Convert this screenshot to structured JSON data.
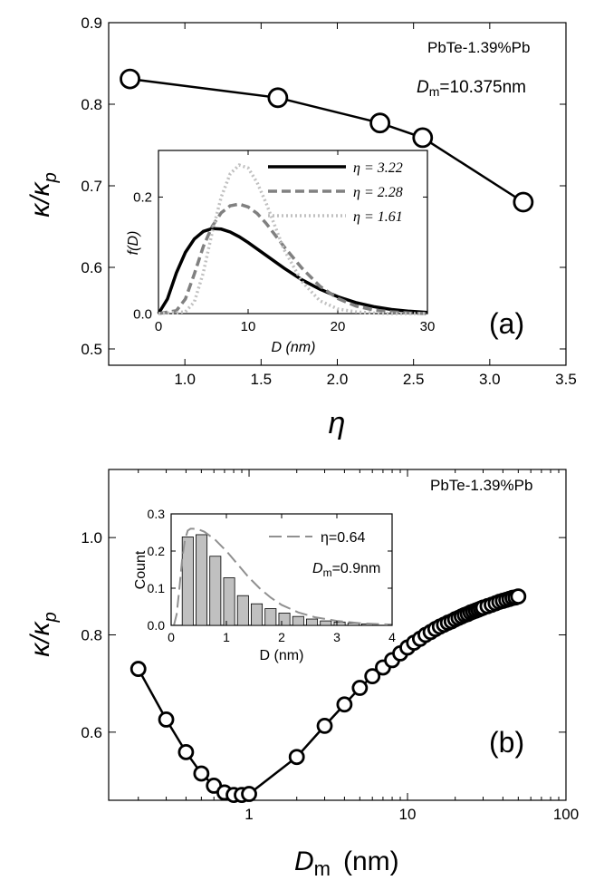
{
  "chart_data": [
    {
      "id": "a",
      "type": "line",
      "panel_label": "(a)",
      "ylabel": {
        "main": "κ/κ",
        "sub": "p"
      },
      "xlabel": "η",
      "annotation": "PbTe-1.39%Pb",
      "dm_label": {
        "main": "D",
        "sub": "m",
        "rest": "=10.375nm"
      },
      "xlim": [
        0.5,
        3.5
      ],
      "ylim": [
        0.48,
        0.9
      ],
      "xticks": [
        1.0,
        1.5,
        2.0,
        2.5,
        3.0,
        3.5
      ],
      "xtick_labels": [
        "1.0",
        "1.5",
        "2.0",
        "2.5",
        "3.0",
        "3.5"
      ],
      "yticks": [
        0.5,
        0.6,
        0.7,
        0.8,
        0.9
      ],
      "ytick_labels": [
        "0.5",
        "0.6",
        "0.7",
        "0.8",
        "0.9"
      ],
      "series": [
        {
          "name": "main",
          "x": [
            0.64,
            1.61,
            2.28,
            2.56,
            3.22
          ],
          "y": [
            0.831,
            0.808,
            0.777,
            0.759,
            0.68
          ]
        }
      ],
      "inset": {
        "type": "line",
        "xlabel": "D (nm)",
        "ylabel": "f(D)",
        "xlim": [
          0,
          30
        ],
        "ylim": [
          0,
          0.28
        ],
        "xticks": [
          0,
          10,
          20,
          30
        ],
        "xtick_labels": [
          "0",
          "10",
          "20",
          "30"
        ],
        "yticks": [
          0.0,
          0.2
        ],
        "ytick_labels": [
          "0.0",
          "0.2"
        ],
        "series": [
          {
            "name": "η = 3.22",
            "style": "solid",
            "color": "#000000",
            "x": [
              0,
              1,
              2,
              3,
              4,
              5,
              6,
              7,
              8,
              9,
              10,
              12,
              14,
              16,
              18,
              20,
              22,
              24,
              26,
              28,
              30
            ],
            "y": [
              0,
              0.025,
              0.07,
              0.105,
              0.128,
              0.141,
              0.146,
              0.145,
              0.14,
              0.132,
              0.122,
              0.1,
              0.078,
              0.058,
              0.042,
              0.029,
              0.019,
              0.012,
              0.007,
              0.004,
              0.002
            ]
          },
          {
            "name": "η = 2.28",
            "style": "dashed",
            "color": "#808080",
            "x": [
              0,
              2,
              3,
              4,
              5,
              6,
              7,
              8,
              9,
              10,
              11,
              12,
              14,
              16,
              18,
              20,
              22,
              24,
              26,
              28,
              30
            ],
            "y": [
              0,
              0.005,
              0.025,
              0.068,
              0.115,
              0.15,
              0.173,
              0.185,
              0.188,
              0.183,
              0.172,
              0.155,
              0.115,
              0.078,
              0.047,
              0.026,
              0.013,
              0.006,
              0.003,
              0.001,
              0.0
            ]
          },
          {
            "name": "η = 1.61",
            "style": "dotted",
            "color": "#c0c0c0",
            "x": [
              0,
              3,
              4,
              5,
              6,
              7,
              8,
              9,
              10,
              11,
              12,
              13,
              14,
              16,
              18,
              20,
              22,
              24,
              26,
              28,
              30
            ],
            "y": [
              0,
              0.003,
              0.02,
              0.07,
              0.14,
              0.2,
              0.24,
              0.255,
              0.25,
              0.225,
              0.19,
              0.15,
              0.11,
              0.055,
              0.022,
              0.008,
              0.003,
              0.001,
              0.0,
              0.0,
              0.0
            ]
          }
        ]
      }
    },
    {
      "id": "b",
      "type": "line",
      "panel_label": "(b)",
      "ylabel": {
        "main": "κ/κ",
        "sub": "p"
      },
      "xlabel": {
        "main": "D",
        "sub": "m",
        "rest": "(nm)"
      },
      "annotation": "PbTe-1.39%Pb",
      "xscale": "log",
      "xlim": [
        0.13,
        100
      ],
      "ylim": [
        0.46,
        1.14
      ],
      "xticks": [
        1,
        10,
        100
      ],
      "xtick_labels": [
        "1",
        "10",
        "100"
      ],
      "yticks": [
        0.6,
        0.8,
        1.0
      ],
      "ytick_labels": [
        "0.6",
        "0.8",
        "1.0"
      ],
      "series": [
        {
          "name": "main",
          "x": [
            0.2,
            0.3,
            0.4,
            0.5,
            0.6,
            0.7,
            0.8,
            0.9,
            1.0,
            2,
            3,
            4,
            5,
            6,
            7,
            8,
            9,
            10,
            11,
            12,
            13,
            14,
            15,
            16,
            17,
            18,
            19,
            20,
            21,
            22,
            23,
            24,
            25,
            26,
            27,
            28,
            29,
            30,
            32,
            34,
            36,
            38,
            40,
            42,
            44,
            46,
            48,
            50
          ],
          "y": [
            0.73,
            0.626,
            0.559,
            0.515,
            0.49,
            0.476,
            0.471,
            0.471,
            0.473,
            0.549,
            0.613,
            0.657,
            0.691,
            0.715,
            0.733,
            0.748,
            0.762,
            0.774,
            0.784,
            0.792,
            0.8,
            0.806,
            0.812,
            0.817,
            0.821,
            0.825,
            0.828,
            0.832,
            0.835,
            0.838,
            0.841,
            0.843,
            0.846,
            0.848,
            0.85,
            0.852,
            0.854,
            0.856,
            0.859,
            0.862,
            0.865,
            0.868,
            0.87,
            0.872,
            0.874,
            0.876,
            0.877,
            0.879
          ]
        }
      ],
      "inset": {
        "type": "bar",
        "xlabel": "D (nm)",
        "ylabel": "Count",
        "xlim": [
          0,
          4
        ],
        "ylim": [
          0,
          0.3
        ],
        "xticks": [
          0,
          1,
          2,
          3,
          4
        ],
        "xtick_labels": [
          "0",
          "1",
          "2",
          "3",
          "4"
        ],
        "yticks": [
          0.0,
          0.1,
          0.2,
          0.3
        ],
        "ytick_labels": [
          "0.0",
          "0.1",
          "0.2",
          "0.3"
        ],
        "bin_width": 0.2,
        "bar_centers": [
          0.3,
          0.55,
          0.8,
          1.05,
          1.3,
          1.55,
          1.8,
          2.05,
          2.3,
          2.55,
          2.8,
          3.05,
          3.3,
          3.55
        ],
        "bar_values": [
          0.238,
          0.244,
          0.186,
          0.128,
          0.08,
          0.058,
          0.045,
          0.033,
          0.024,
          0.017,
          0.012,
          0.009,
          0.006,
          0.004
        ],
        "bar_color": "#c0c0c0",
        "fit": {
          "name": "η=0.64",
          "style": "long-dashed",
          "color": "#909090",
          "x": [
            0.05,
            0.1,
            0.15,
            0.2,
            0.25,
            0.3,
            0.35,
            0.4,
            0.5,
            0.6,
            0.8,
            1.0,
            1.2,
            1.4,
            1.6,
            1.8,
            2.0,
            2.3,
            2.6,
            3.0,
            3.4,
            3.8,
            4.0
          ],
          "y": [
            0.0,
            0.03,
            0.1,
            0.18,
            0.23,
            0.255,
            0.26,
            0.26,
            0.258,
            0.252,
            0.23,
            0.2,
            0.165,
            0.13,
            0.1,
            0.075,
            0.055,
            0.035,
            0.022,
            0.012,
            0.006,
            0.003,
            0.002
          ]
        },
        "annotation_dm": {
          "main": "D",
          "sub": "m",
          "rest": "=0.9nm"
        }
      }
    }
  ]
}
